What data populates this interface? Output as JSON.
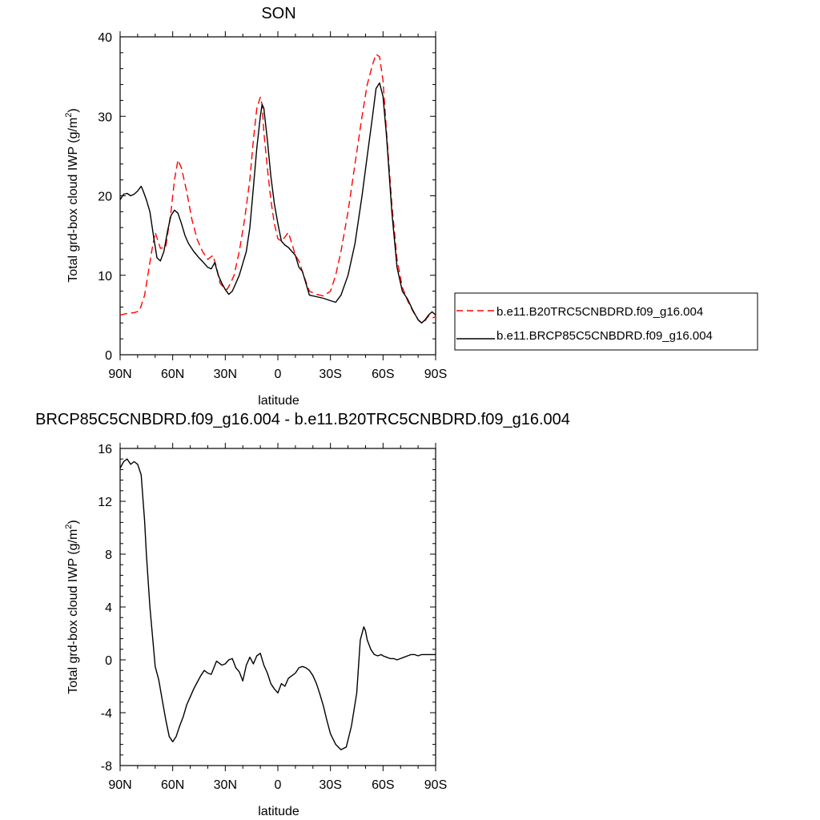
{
  "chart_data": [
    {
      "type": "line",
      "title": "SON",
      "xlabel": "latitude",
      "ylabel": "Total grd-box cloud IWP (g/m²)",
      "ylabel_base": "Total grd-box cloud IWP (g/m",
      "ylabel_sup": "2",
      "ylabel_close": ")",
      "xlim": [
        90,
        -90
      ],
      "ylim": [
        0,
        40
      ],
      "xticks": [
        90,
        60,
        30,
        0,
        -30,
        -60,
        -90
      ],
      "xtick_labels": [
        "90N",
        "60N",
        "30N",
        "0",
        "30S",
        "60S",
        "90S"
      ],
      "yticks": [
        0,
        10,
        20,
        30,
        40
      ],
      "ytick_labels": [
        "0",
        "10",
        "20",
        "30",
        "40"
      ],
      "legend_position": "right",
      "series": [
        {
          "name": "b.e11.B20TRC5CNBDRD.f09_g16.004",
          "color": "#ff0000",
          "dash": "dashed",
          "x": [
            90,
            86,
            82,
            79,
            76,
            72,
            70,
            67,
            64,
            61,
            59,
            57,
            55,
            52,
            49,
            46,
            43,
            40,
            37,
            35,
            33,
            31,
            29,
            27,
            25,
            22,
            19,
            16,
            14,
            12,
            10,
            9,
            8,
            6,
            4,
            2,
            0,
            -2,
            -4,
            -6,
            -8,
            -10,
            -12,
            -15,
            -18,
            -22,
            -26,
            -30,
            -33,
            -36,
            -40,
            -44,
            -48,
            -51,
            -54,
            -56,
            -58,
            -60,
            -62,
            -65,
            -68,
            -71,
            -74,
            -77,
            -80,
            -82,
            -84,
            -86,
            -88,
            -90
          ],
          "y": [
            5.0,
            5.2,
            5.3,
            5.5,
            7.5,
            13.0,
            15.4,
            13.4,
            13.5,
            18.0,
            22.0,
            24.5,
            23.5,
            20.5,
            17.0,
            14.5,
            13.0,
            12.0,
            12.5,
            11.0,
            9.0,
            8.5,
            8.2,
            9.0,
            10.0,
            13.0,
            17.0,
            22.0,
            27.0,
            31.0,
            32.4,
            31.5,
            28.0,
            23.5,
            19.5,
            16.5,
            14.6,
            14.3,
            14.8,
            15.4,
            14.0,
            12.5,
            11.8,
            9.8,
            8.0,
            7.6,
            7.4,
            8.0,
            10.0,
            13.0,
            18.0,
            24.0,
            30.0,
            34.0,
            36.5,
            37.8,
            37.5,
            34.5,
            28.0,
            19.0,
            12.0,
            8.5,
            6.8,
            5.5,
            4.4,
            4.0,
            4.3,
            4.9,
            4.6,
            4.8
          ]
        },
        {
          "name": "b.e11.BRCP85C5CNBDRD.f09_g16.004",
          "color": "#000000",
          "dash": "solid",
          "x": [
            90,
            88,
            86,
            84,
            82,
            80,
            78,
            77,
            75,
            73,
            71,
            69,
            67,
            65,
            63,
            61,
            59,
            57,
            55,
            53,
            51,
            48,
            45,
            42,
            40,
            38,
            36,
            34,
            32,
            30,
            28,
            26,
            24,
            22,
            20,
            18,
            16,
            14,
            12,
            10,
            9,
            8,
            6,
            4,
            2,
            0,
            -2,
            -4,
            -6,
            -8,
            -10,
            -12,
            -14,
            -16,
            -18,
            -22,
            -26,
            -30,
            -33,
            -36,
            -40,
            -44,
            -48,
            -51,
            -54,
            -56,
            -58,
            -60,
            -62,
            -65,
            -68,
            -71,
            -74,
            -77,
            -80,
            -82,
            -84,
            -86,
            -88,
            -90
          ],
          "y": [
            19.5,
            20.2,
            20.3,
            20.0,
            20.2,
            20.6,
            21.2,
            20.7,
            19.5,
            18.0,
            15.0,
            12.2,
            11.8,
            13.0,
            15.5,
            17.5,
            18.2,
            17.8,
            16.5,
            15.0,
            14.0,
            13.0,
            12.2,
            11.5,
            11.0,
            10.8,
            11.6,
            10.0,
            9.0,
            8.2,
            7.6,
            8.0,
            9.0,
            10.0,
            11.5,
            13.0,
            16.0,
            21.0,
            26.0,
            30.0,
            31.5,
            31.0,
            27.0,
            22.5,
            19.0,
            16.5,
            14.3,
            13.8,
            13.5,
            13.0,
            12.5,
            11.0,
            10.5,
            9.0,
            7.5,
            7.3,
            7.1,
            6.8,
            6.6,
            7.5,
            10.0,
            14.0,
            20.0,
            25.0,
            30.0,
            33.5,
            34.2,
            32.5,
            27.5,
            18.0,
            11.0,
            8.0,
            7.0,
            5.6,
            4.4,
            4.0,
            4.4,
            5.0,
            5.4,
            5.0
          ]
        }
      ]
    },
    {
      "type": "line",
      "title": "BRCP85C5CNBDRD.f09_g16.004 - b.e11.B20TRC5CNBDRD.f09_g16.004",
      "xlabel": "latitude",
      "ylabel": "Total grd-box cloud IWP (g/m²)",
      "ylabel_base": "Total grd-box cloud IWP (g/m",
      "ylabel_sup": "2",
      "ylabel_close": ")",
      "xlim": [
        90,
        -90
      ],
      "ylim": [
        -8,
        16
      ],
      "xticks": [
        90,
        60,
        30,
        0,
        -30,
        -60,
        -90
      ],
      "xtick_labels": [
        "90N",
        "60N",
        "30N",
        "0",
        "30S",
        "60S",
        "90S"
      ],
      "yticks": [
        -8,
        -4,
        0,
        4,
        8,
        12,
        16
      ],
      "ytick_labels": [
        "-8",
        "-4",
        "0",
        "4",
        "8",
        "12",
        "16"
      ],
      "series": [
        {
          "color": "#000000",
          "dash": "solid",
          "x": [
            90,
            88,
            86,
            84,
            82,
            80,
            78,
            76,
            75,
            73,
            71,
            70,
            68,
            66,
            64,
            62,
            60,
            58,
            56,
            54,
            52,
            50,
            48,
            46,
            44,
            42,
            40,
            38,
            35,
            32,
            30,
            28,
            26,
            24,
            22,
            20,
            18,
            16,
            14,
            12,
            10,
            8,
            6,
            4,
            2,
            0,
            -2,
            -4,
            -6,
            -8,
            -10,
            -12,
            -14,
            -16,
            -18,
            -20,
            -22,
            -24,
            -26,
            -28,
            -30,
            -33,
            -36,
            -39,
            -42,
            -45,
            -47,
            -49,
            -50,
            -51,
            -53,
            -55,
            -57,
            -59,
            -60,
            -62,
            -64,
            -66,
            -68,
            -70,
            -72,
            -74,
            -76,
            -78,
            -80,
            -82,
            -84,
            -86,
            -88,
            -90
          ],
          "y": [
            14.5,
            15.0,
            15.2,
            14.8,
            15.0,
            14.8,
            14.0,
            10.5,
            8.0,
            4.0,
            1.0,
            -0.5,
            -1.5,
            -3.0,
            -4.5,
            -5.8,
            -6.2,
            -5.8,
            -5.0,
            -4.3,
            -3.4,
            -2.8,
            -2.2,
            -1.7,
            -1.2,
            -0.8,
            -1.0,
            -1.1,
            -0.1,
            -0.4,
            -0.3,
            0.0,
            0.1,
            -0.6,
            -0.9,
            -1.6,
            -0.4,
            0.2,
            -0.3,
            0.3,
            0.5,
            -0.4,
            -1.0,
            -1.8,
            -2.2,
            -2.5,
            -1.8,
            -2.0,
            -1.4,
            -1.2,
            -1.0,
            -0.6,
            -0.5,
            -0.6,
            -0.8,
            -1.2,
            -1.8,
            -2.6,
            -3.5,
            -4.6,
            -5.6,
            -6.4,
            -6.8,
            -6.6,
            -5.0,
            -2.5,
            1.5,
            2.5,
            2.2,
            1.5,
            0.8,
            0.4,
            0.3,
            0.4,
            0.3,
            0.2,
            0.1,
            0.1,
            0.0,
            0.1,
            0.2,
            0.3,
            0.4,
            0.4,
            0.3,
            0.4,
            0.4,
            0.4,
            0.4,
            0.4
          ]
        }
      ]
    }
  ]
}
